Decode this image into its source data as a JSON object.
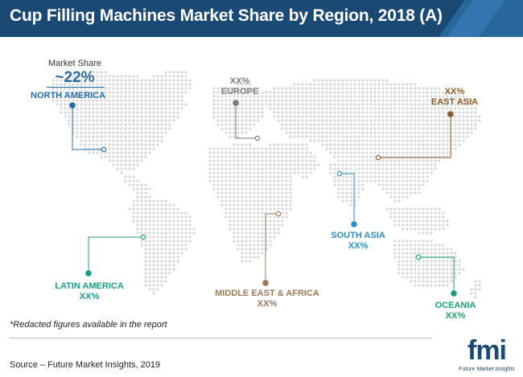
{
  "title": "Cup Filling Machines Market Share by Region, 2018 (A)",
  "market_share": {
    "caption": "Market Share",
    "value": "~22%"
  },
  "regions": [
    {
      "id": "north-america",
      "name": "NORTH AMERICA",
      "value": "",
      "color": "#1f6fae"
    },
    {
      "id": "europe",
      "name": "EUROPE",
      "value": "XX%",
      "color": "#7a7a7a"
    },
    {
      "id": "east-asia",
      "name": "EAST ASIA",
      "value": "XX%",
      "color": "#8b5a2b"
    },
    {
      "id": "south-asia",
      "name": "SOUTH ASIA",
      "value": "XX%",
      "color": "#2a8fc4"
    },
    {
      "id": "latin-america",
      "name": "LATIN AMERICA",
      "value": "XX%",
      "color": "#1a9e8a"
    },
    {
      "id": "middle-east-africa",
      "name": "MIDDLE EAST & AFRICA",
      "value": "XX%",
      "color": "#9a7a55"
    },
    {
      "id": "oceania",
      "name": "OCEANIA",
      "value": "XX%",
      "color": "#1aa07a"
    }
  ],
  "note": "*Redacted figures available in the report",
  "source": "Source – Future Market Insights, 2019",
  "logo": {
    "text": "fmi",
    "subtext": "Future Market Insights"
  },
  "colors": {
    "header": "#1a4a74",
    "map_dots": "#d6d6d6"
  }
}
